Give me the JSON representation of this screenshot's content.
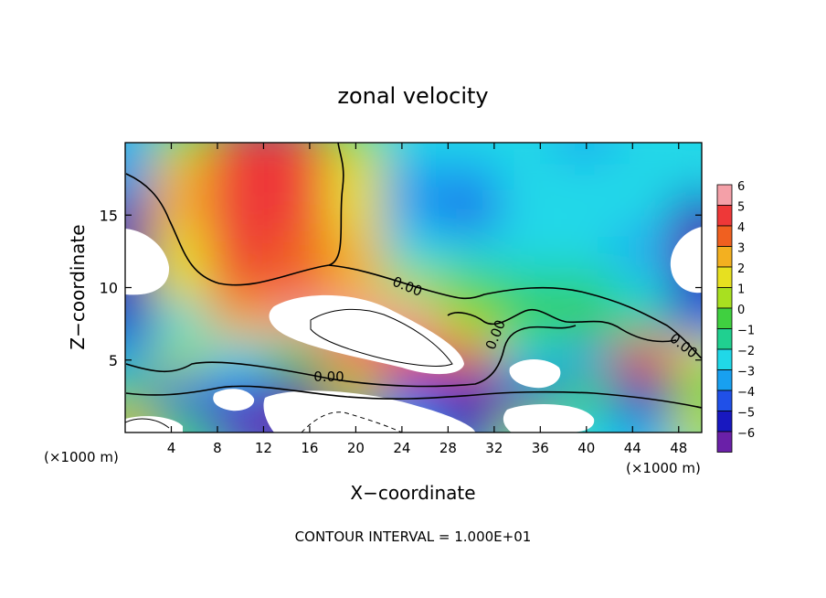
{
  "chart_data": {
    "type": "heatmap",
    "title": "zonal velocity",
    "xlabel": "X−coordinate",
    "ylabel": "Z−coordinate",
    "x_unit_left": "(×1000 m)",
    "x_unit_right": "(×1000 m)",
    "footer": "CONTOUR INTERVAL = 1.000E+01",
    "xlim": [
      0,
      50
    ],
    "ylim": [
      0,
      20
    ],
    "x_ticks": [
      4,
      8,
      12,
      16,
      20,
      24,
      28,
      32,
      36,
      40,
      44,
      48
    ],
    "y_ticks": [
      5,
      10,
      15
    ],
    "colorbar": {
      "labels": [
        "6",
        "5",
        "4",
        "3",
        "2",
        "1",
        "0",
        "−1",
        "−2",
        "−3",
        "−4",
        "−5",
        "−6"
      ],
      "colors": [
        "#f4a0a8",
        "#ee3838",
        "#f06020",
        "#f3b020",
        "#e7e020",
        "#a8e020",
        "#40d040",
        "#20d090",
        "#20d8e8",
        "#18a0f0",
        "#2050e8",
        "#1818c0",
        "#6a20a8"
      ]
    },
    "contour_labels": [
      "0.00",
      "0.00",
      "0.00",
      "0.00"
    ],
    "field_grid": {
      "x": [
        0,
        5,
        10,
        15,
        20,
        25,
        30,
        35,
        40,
        45,
        50
      ],
      "z": [
        20,
        17.5,
        15,
        12.5,
        10,
        7.5,
        5,
        2.5,
        0
      ],
      "u": [
        [
          -3,
          1,
          5,
          5,
          1,
          -2,
          -2,
          -2,
          -3,
          -2,
          -2
        ],
        [
          -3,
          3,
          5,
          5,
          2,
          -3,
          -3,
          -2,
          -2,
          -2,
          -2
        ],
        [
          -6,
          3,
          5,
          5,
          2,
          -3,
          -4,
          -2,
          -2,
          -2,
          -5
        ],
        [
          -6,
          2,
          5,
          4,
          3,
          -2,
          -2,
          -2,
          -2,
          -3,
          -6
        ],
        [
          -5,
          2,
          4,
          4,
          3,
          1,
          0,
          -1,
          -1,
          -2,
          -5
        ],
        [
          -5,
          -2,
          3,
          6,
          6,
          6,
          1,
          0,
          0,
          -1,
          -4
        ],
        [
          -3,
          1,
          -2,
          0,
          4,
          5,
          4,
          -2,
          -3,
          5,
          2
        ],
        [
          0,
          -4,
          -4,
          -6,
          1,
          -4,
          -5,
          -5,
          0,
          -5,
          0
        ],
        [
          3,
          0,
          -6,
          -6,
          -6,
          -3,
          -6,
          1,
          -2,
          -3,
          2
        ]
      ]
    }
  }
}
